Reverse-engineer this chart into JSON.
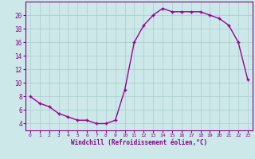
{
  "x": [
    0,
    1,
    2,
    3,
    4,
    5,
    6,
    7,
    8,
    9,
    10,
    11,
    12,
    13,
    14,
    15,
    16,
    17,
    18,
    19,
    20,
    21,
    22,
    23
  ],
  "y": [
    8,
    7,
    6.5,
    5.5,
    5,
    4.5,
    4.5,
    4,
    4,
    4.5,
    9,
    16,
    18.5,
    20,
    21,
    20.5,
    20.5,
    20.5,
    20.5,
    20,
    19.5,
    18.5,
    16,
    10.5
  ],
  "line_color": "#990099",
  "marker": "+",
  "background_color": "#cce8e8",
  "grid_color": "#aacccc",
  "xlabel": "Windchill (Refroidissement éolien,°C)",
  "xlabel_color": "#880088",
  "tick_color": "#880088",
  "spine_color": "#880088",
  "ylim": [
    3,
    22
  ],
  "yticks": [
    4,
    6,
    8,
    10,
    12,
    14,
    16,
    18,
    20
  ],
  "xlim": [
    -0.5,
    23.5
  ],
  "xtick_fontsize": 4.5,
  "ytick_fontsize": 5.5,
  "xlabel_fontsize": 5.5
}
